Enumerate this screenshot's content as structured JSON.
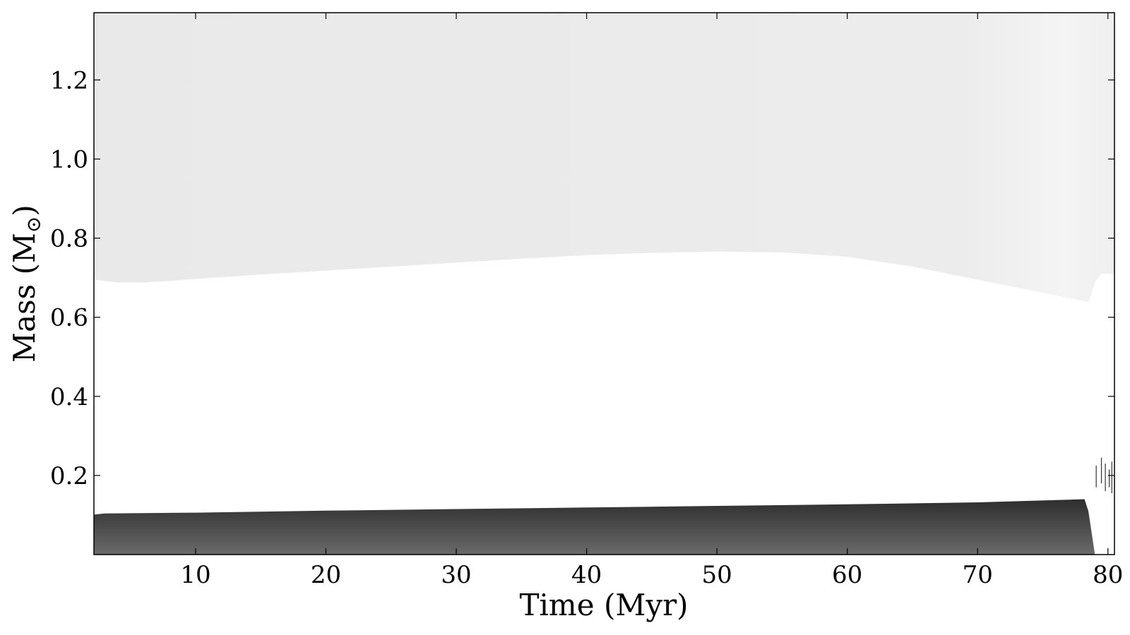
{
  "chart_data": {
    "type": "area",
    "title": "",
    "xlabel": "Time (Myr)",
    "ylabel_main": "Mass (M",
    "ylabel_sub": "⊙",
    "ylabel_close": ")",
    "xlim": [
      2.2,
      80.5
    ],
    "ylim": [
      0,
      1.37
    ],
    "xticks": [
      10,
      20,
      30,
      40,
      50,
      60,
      70,
      80
    ],
    "xtick_labels": [
      "10",
      "20",
      "30",
      "40",
      "50",
      "60",
      "70",
      "80"
    ],
    "yticks": [
      0.2,
      0.4,
      0.6,
      0.8,
      1.0,
      1.2
    ],
    "ytick_labels": [
      "0.2",
      "0.4",
      "0.6",
      "0.8",
      "1.0",
      "1.2"
    ],
    "grid": false,
    "colors": {
      "envelope": "#e9e9e9",
      "envelope_light": "#f6f6f6",
      "core_top": "#2e2e2e",
      "core_bottom": "#6a6a6a"
    },
    "series": [
      {
        "region": "convective_envelope_lower_boundary",
        "x": [
          2.2,
          4,
          6,
          8,
          10,
          15,
          20,
          25,
          30,
          35,
          40,
          45,
          50,
          55,
          60,
          65,
          70,
          75,
          78.5
        ],
        "y": [
          0.695,
          0.688,
          0.688,
          0.692,
          0.697,
          0.708,
          0.718,
          0.728,
          0.738,
          0.748,
          0.757,
          0.763,
          0.766,
          0.764,
          0.753,
          0.728,
          0.695,
          0.662,
          0.638
        ]
      },
      {
        "region": "convective_core_upper_boundary",
        "x": [
          2.2,
          3,
          10,
          20,
          30,
          40,
          50,
          60,
          70,
          78.2,
          78.5,
          79
        ],
        "y": [
          0.101,
          0.104,
          0.106,
          0.111,
          0.115,
          0.119,
          0.123,
          0.127,
          0.132,
          0.14,
          0.11,
          0
        ]
      }
    ]
  }
}
